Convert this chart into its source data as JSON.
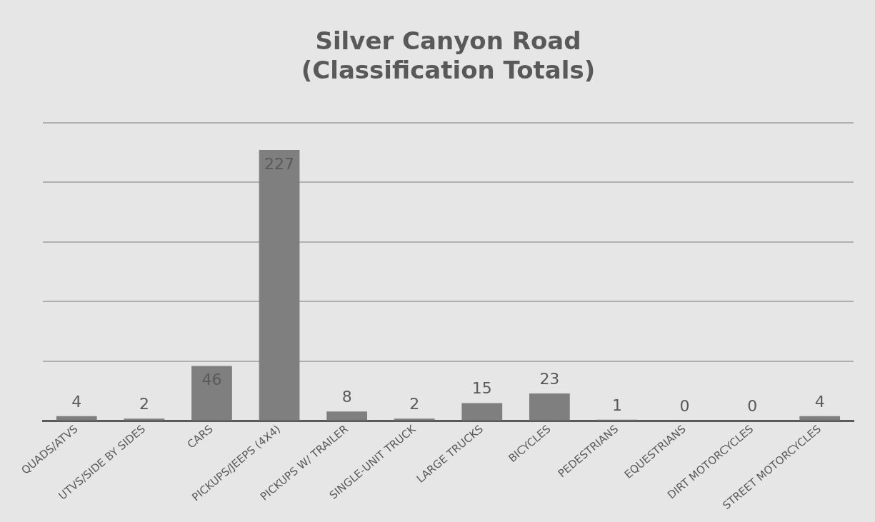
{
  "chart_data": {
    "type": "bar",
    "title": "Silver Canyon Road\n(Classification Totals)",
    "categories": [
      "QUADS/ATVS",
      "UTVS/SIDE BY SIDES",
      "CARS",
      "PICKUPS/JEEPS (4X4)",
      "PICKUPS W/ TRAILER",
      "SINGLE-UNIT TRUCK",
      "LARGE TRUCKS",
      "BICYCLES",
      "PEDESTRIANS",
      "EQUESTRIANS",
      "DIRT MOTORCYCLES",
      "STREET MOTORCYCLES"
    ],
    "values": [
      4,
      2,
      46,
      227,
      8,
      2,
      15,
      23,
      1,
      0,
      0,
      4
    ],
    "color": "#7f7f7f",
    "ylim": [
      0,
      250
    ],
    "yticks": [
      {
        "value": 0,
        "label": null
      },
      {
        "value": 50,
        "label": null
      },
      {
        "value": 100,
        "label": null
      },
      {
        "value": 150,
        "label": null
      },
      {
        "value": 200,
        "label": null
      },
      {
        "value": 250,
        "label": null
      }
    ],
    "grid": "y",
    "tick_labels": "x",
    "data_labels": true,
    "legend": false
  }
}
